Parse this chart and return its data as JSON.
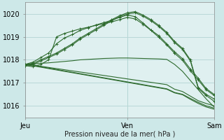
{
  "bg_color": "#cde8e8",
  "plot_bg_color": "#dff0f0",
  "grid_color": "#b8d8d8",
  "line_color": "#2d6a2d",
  "xlabel": "Pression niveau de la mer( hPa )",
  "ylim": [
    1015.5,
    1020.5
  ],
  "yticks": [
    1016,
    1017,
    1018,
    1019,
    1020
  ],
  "xtick_labels": [
    "Jeu",
    "Ven",
    "Sam"
  ],
  "xtick_positions": [
    0,
    13,
    24
  ],
  "n_points": 25,
  "series_no_marker": [
    [
      1017.8,
      1017.82,
      1017.85,
      1017.87,
      1017.9,
      1017.93,
      1017.96,
      1018.0,
      1018.02,
      1018.04,
      1018.06,
      1018.07,
      1018.08,
      1018.08,
      1018.07,
      1018.06,
      1018.05,
      1018.04,
      1018.02,
      1017.8,
      1017.5,
      1017.1,
      1016.7,
      1016.3,
      1015.95
    ],
    [
      1017.8,
      1017.78,
      1017.72,
      1017.67,
      1017.62,
      1017.57,
      1017.52,
      1017.47,
      1017.42,
      1017.37,
      1017.32,
      1017.27,
      1017.22,
      1017.17,
      1017.12,
      1017.07,
      1017.02,
      1016.97,
      1016.92,
      1016.72,
      1016.62,
      1016.42,
      1016.22,
      1016.1,
      1016.0
    ],
    [
      1017.8,
      1017.76,
      1017.7,
      1017.64,
      1017.58,
      1017.52,
      1017.46,
      1017.4,
      1017.34,
      1017.28,
      1017.22,
      1017.16,
      1017.1,
      1017.04,
      1016.98,
      1016.92,
      1016.86,
      1016.8,
      1016.74,
      1016.58,
      1016.5,
      1016.32,
      1016.15,
      1016.0,
      1015.9
    ],
    [
      1017.8,
      1017.74,
      1017.68,
      1017.62,
      1017.56,
      1017.5,
      1017.44,
      1017.38,
      1017.32,
      1017.26,
      1017.2,
      1017.14,
      1017.08,
      1017.02,
      1016.96,
      1016.9,
      1016.84,
      1016.78,
      1016.72,
      1016.56,
      1016.48,
      1016.28,
      1016.1,
      1015.95,
      1015.85
    ]
  ],
  "series_with_marker": [
    [
      1017.8,
      1017.85,
      1018.0,
      1018.15,
      1018.3,
      1018.5,
      1018.7,
      1018.95,
      1019.15,
      1019.35,
      1019.55,
      1019.75,
      1019.92,
      1020.05,
      1020.1,
      1019.95,
      1019.75,
      1019.5,
      1019.2,
      1018.8,
      1018.5,
      1018.0,
      1016.8,
      1016.5,
      1016.3
    ],
    [
      1017.75,
      1017.8,
      1017.95,
      1018.1,
      1018.25,
      1018.45,
      1018.65,
      1018.9,
      1019.1,
      1019.3,
      1019.5,
      1019.7,
      1019.88,
      1020.0,
      1020.05,
      1019.9,
      1019.7,
      1019.45,
      1019.15,
      1018.75,
      1018.45,
      1017.95,
      1016.75,
      1016.45,
      1016.2
    ],
    [
      1017.8,
      1017.9,
      1018.1,
      1018.3,
      1018.7,
      1018.95,
      1019.1,
      1019.28,
      1019.4,
      1019.52,
      1019.62,
      1019.72,
      1019.85,
      1019.95,
      1019.88,
      1019.6,
      1019.3,
      1019.05,
      1018.7,
      1018.35,
      1018.05,
      1017.6,
      1017.2,
      1016.75,
      1016.5
    ],
    [
      1017.75,
      1017.7,
      1017.8,
      1018.0,
      1019.0,
      1019.15,
      1019.25,
      1019.35,
      1019.42,
      1019.5,
      1019.58,
      1019.65,
      1019.75,
      1019.85,
      1019.78,
      1019.55,
      1019.28,
      1018.98,
      1018.65,
      1018.28,
      1017.98,
      1017.52,
      1017.12,
      1016.7,
      1016.45
    ]
  ]
}
